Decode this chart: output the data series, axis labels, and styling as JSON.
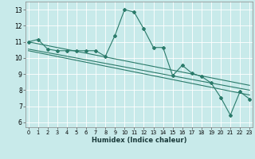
{
  "xlabel": "Humidex (Indice chaleur)",
  "bg_color": "#c8eaea",
  "grid_color": "#ffffff",
  "line_color": "#2a7a6a",
  "x_ticks": [
    0,
    1,
    2,
    3,
    4,
    5,
    6,
    7,
    8,
    9,
    10,
    11,
    12,
    13,
    14,
    15,
    16,
    17,
    18,
    19,
    20,
    21,
    22,
    23
  ],
  "y_ticks": [
    6,
    7,
    8,
    9,
    10,
    11,
    12,
    13
  ],
  "ylim": [
    5.7,
    13.5
  ],
  "xlim": [
    -0.3,
    23.3
  ],
  "series1_x": [
    0,
    1,
    2,
    3,
    4,
    5,
    6,
    7,
    8,
    9,
    10,
    11,
    12,
    13,
    14,
    15,
    16,
    17,
    18,
    19,
    20,
    21,
    22,
    23
  ],
  "series1_y": [
    11.0,
    11.15,
    10.55,
    10.45,
    10.45,
    10.45,
    10.45,
    10.45,
    10.1,
    11.4,
    13.0,
    12.85,
    11.8,
    10.65,
    10.65,
    8.9,
    9.55,
    9.05,
    8.85,
    8.45,
    7.55,
    6.45,
    7.9,
    7.45
  ],
  "series2_x": [
    0,
    23
  ],
  "series2_y": [
    11.0,
    8.3
  ],
  "series3_x": [
    0,
    23
  ],
  "series3_y": [
    10.55,
    8.0
  ],
  "series4_x": [
    0,
    23
  ],
  "series4_y": [
    10.45,
    7.7
  ]
}
